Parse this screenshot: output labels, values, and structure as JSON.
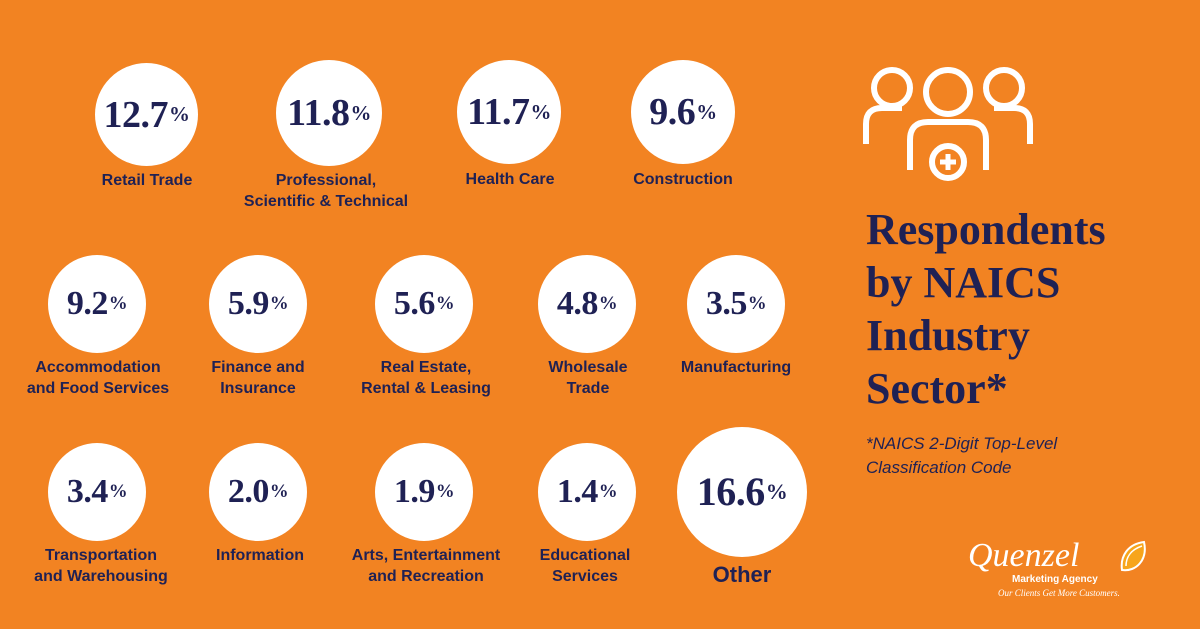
{
  "chart_data": {
    "type": "table",
    "title_lines": [
      "Respondents",
      "by NAICS",
      "Industry",
      "Sector*"
    ],
    "note_lines": [
      "*NAICS 2-Digit Top-Level",
      "Classification Code"
    ],
    "unit": "%",
    "items": [
      {
        "value": "12.7",
        "label_lines": [
          "Retail Trade"
        ]
      },
      {
        "value": "11.8",
        "label_lines": [
          "Professional,",
          "Scientific & Technical"
        ]
      },
      {
        "value": "11.7",
        "label_lines": [
          "Health Care"
        ]
      },
      {
        "value": "9.6",
        "label_lines": [
          "Construction"
        ]
      },
      {
        "value": "9.2",
        "label_lines": [
          "Accommodation",
          "and Food Services"
        ]
      },
      {
        "value": "5.9",
        "label_lines": [
          "Finance and",
          "Insurance"
        ]
      },
      {
        "value": "5.6",
        "label_lines": [
          "Real Estate,",
          "Rental & Leasing"
        ]
      },
      {
        "value": "4.8",
        "label_lines": [
          "Wholesale",
          "Trade"
        ]
      },
      {
        "value": "3.5",
        "label_lines": [
          "Manufacturing"
        ]
      },
      {
        "value": "3.4",
        "label_lines": [
          "Transportation",
          "and Warehousing"
        ]
      },
      {
        "value": "2.0",
        "label_lines": [
          "Information"
        ]
      },
      {
        "value": "1.9",
        "label_lines": [
          "Arts, Entertainment",
          "and Recreation"
        ]
      },
      {
        "value": "1.4",
        "label_lines": [
          "Educational",
          "Services"
        ]
      },
      {
        "value": "16.6",
        "label_lines": [
          "Other"
        ]
      }
    ]
  },
  "logo": {
    "name": "Quenzel",
    "subtitle": "Marketing Agency",
    "tagline": "Our Clients Get More Customers."
  },
  "colors": {
    "background": "#F28322",
    "text": "#1F2154",
    "circle": "#FFFFFF"
  },
  "icons": [
    "people-group-icon",
    "orange-slice-icon"
  ]
}
